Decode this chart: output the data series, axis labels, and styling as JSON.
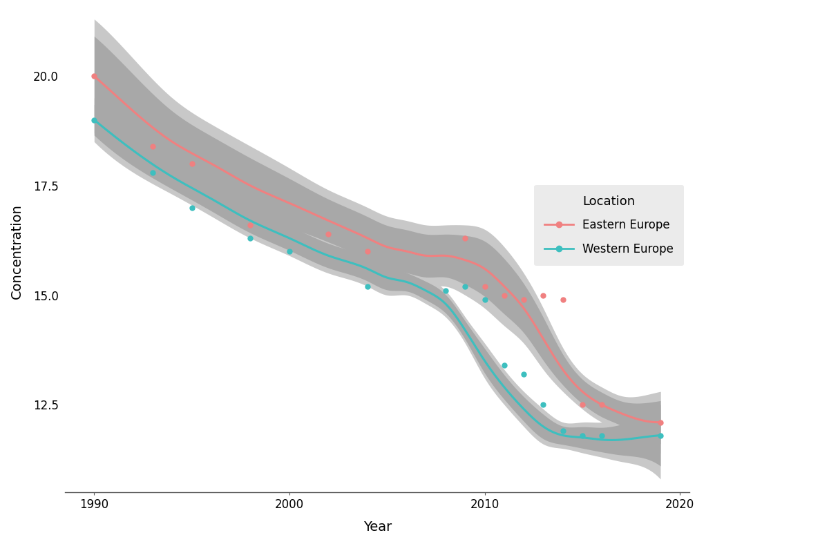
{
  "xlabel": "Year",
  "ylabel": "Concentration",
  "background_color": "#ffffff",
  "eastern_color": "#F08080",
  "western_color": "#3DBFBF",
  "ci_color_outer": "#c8c8c8",
  "ci_color_inner": "#a8a8a8",
  "eastern_smooth_x": [
    1990,
    1992,
    1994,
    1996,
    1998,
    2000,
    2002,
    2004,
    2005,
    2006,
    2007,
    2008,
    2009,
    2010,
    2011,
    2012,
    2013,
    2014,
    2015,
    2016,
    2017,
    2018,
    2019
  ],
  "eastern_smooth_y": [
    20.0,
    19.2,
    18.5,
    18.0,
    17.5,
    17.1,
    16.7,
    16.3,
    16.1,
    16.0,
    15.9,
    15.9,
    15.8,
    15.6,
    15.2,
    14.7,
    14.0,
    13.3,
    12.8,
    12.5,
    12.3,
    12.15,
    12.1
  ],
  "eastern_ci_upper": [
    21.3,
    20.4,
    19.5,
    18.9,
    18.4,
    17.9,
    17.4,
    17.0,
    16.8,
    16.7,
    16.6,
    16.6,
    16.6,
    16.5,
    16.1,
    15.5,
    14.7,
    13.8,
    13.2,
    12.9,
    12.7,
    12.7,
    12.8
  ],
  "eastern_ci_lower": [
    18.7,
    18.0,
    17.5,
    17.1,
    16.6,
    16.3,
    16.0,
    15.6,
    15.4,
    15.3,
    15.2,
    15.2,
    15.0,
    14.7,
    14.3,
    13.9,
    13.3,
    12.8,
    12.4,
    12.1,
    11.9,
    11.6,
    11.4
  ],
  "western_smooth_x": [
    1990,
    1992,
    1994,
    1996,
    1998,
    2000,
    2002,
    2004,
    2005,
    2006,
    2007,
    2008,
    2009,
    2010,
    2011,
    2012,
    2013,
    2014,
    2015,
    2016,
    2017,
    2018,
    2019
  ],
  "western_smooth_y": [
    19.0,
    18.3,
    17.7,
    17.2,
    16.7,
    16.3,
    15.9,
    15.6,
    15.4,
    15.3,
    15.1,
    14.8,
    14.2,
    13.5,
    12.9,
    12.4,
    12.0,
    11.8,
    11.75,
    11.7,
    11.7,
    11.75,
    11.8
  ],
  "western_ci_upper": [
    19.5,
    18.8,
    18.1,
    17.6,
    17.1,
    16.7,
    16.3,
    16.0,
    15.8,
    15.6,
    15.4,
    15.1,
    14.5,
    13.9,
    13.3,
    12.8,
    12.4,
    12.1,
    12.1,
    12.1,
    12.2,
    12.4,
    12.8
  ],
  "western_ci_lower": [
    18.5,
    17.8,
    17.3,
    16.8,
    16.3,
    15.9,
    15.5,
    15.2,
    15.0,
    15.0,
    14.8,
    14.5,
    13.9,
    13.1,
    12.5,
    12.0,
    11.6,
    11.5,
    11.4,
    11.3,
    11.2,
    11.1,
    10.8
  ],
  "eastern_dots_x": [
    1990,
    1993,
    1995,
    1998,
    2002,
    2004,
    2009,
    2010,
    2011,
    2012,
    2013,
    2014,
    2015,
    2016,
    2019
  ],
  "eastern_dots_y": [
    20.0,
    18.4,
    18.0,
    16.6,
    16.4,
    16.0,
    16.3,
    15.2,
    15.0,
    14.9,
    15.0,
    14.9,
    12.5,
    12.5,
    12.1
  ],
  "western_dots_x": [
    1990,
    1993,
    1995,
    1998,
    2000,
    2004,
    2008,
    2009,
    2010,
    2011,
    2012,
    2013,
    2014,
    2015,
    2016,
    2019
  ],
  "western_dots_y": [
    19.0,
    17.8,
    17.0,
    16.3,
    16.0,
    15.2,
    15.1,
    15.2,
    14.9,
    13.4,
    13.2,
    12.5,
    11.9,
    11.8,
    11.8,
    11.8
  ],
  "xlim": [
    1988.5,
    2020.5
  ],
  "ylim": [
    10.5,
    21.5
  ],
  "xticks": [
    1990,
    2000,
    2010,
    2020
  ],
  "yticks": [
    12.5,
    15.0,
    17.5,
    20.0
  ],
  "legend_title": "Location",
  "legend_labels": [
    "Eastern Europe",
    "Western Europe"
  ]
}
